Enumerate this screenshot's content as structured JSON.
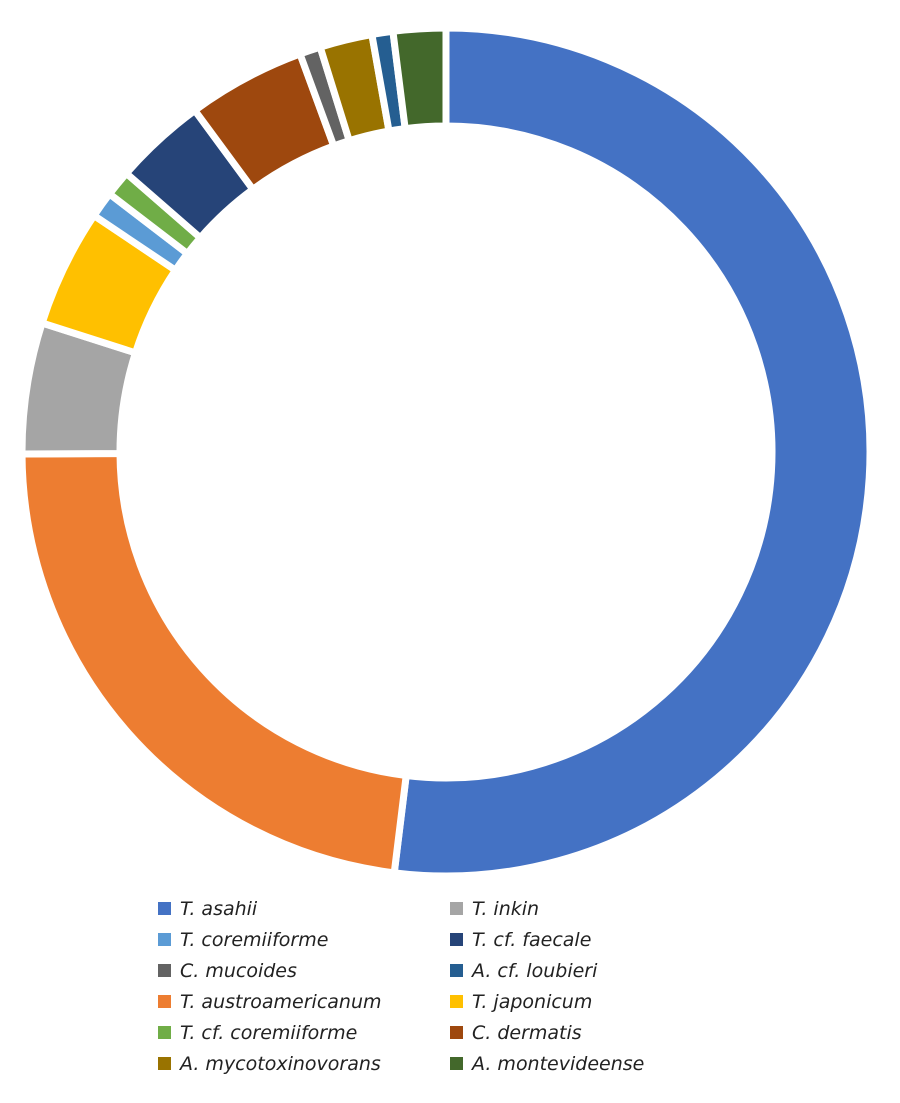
{
  "chart_data": {
    "type": "pie",
    "variant": "donut",
    "title": "",
    "unit": "approximate percent",
    "slices": [
      {
        "label": "T. asahii",
        "value": 52,
        "color": "#4472C4"
      },
      {
        "label": "T. austroamericanum",
        "value": 23,
        "color": "#ED7D31"
      },
      {
        "label": "T. inkin",
        "value": 5,
        "color": "#A5A5A5"
      },
      {
        "label": "T. japonicum",
        "value": 4.5,
        "color": "#FFC000"
      },
      {
        "label": "T. coremiiforme",
        "value": 1,
        "color": "#5B9BD5"
      },
      {
        "label": "T. cf. coremiiforme",
        "value": 1,
        "color": "#70AD47"
      },
      {
        "label": "T. cf. faecale",
        "value": 3.5,
        "color": "#264478"
      },
      {
        "label": "C. dermatis",
        "value": 4.5,
        "color": "#9E480E"
      },
      {
        "label": "C. mucoides",
        "value": 0.8,
        "color": "#636363"
      },
      {
        "label": "A. mycotoxinovorans",
        "value": 2,
        "color": "#997300"
      },
      {
        "label": "A. cf. loubieri",
        "value": 0.8,
        "color": "#255E91"
      },
      {
        "label": "A. montevideense",
        "value": 2,
        "color": "#43682B"
      }
    ],
    "legend_order": [
      0,
      2,
      4,
      6,
      8,
      10,
      1,
      3,
      5,
      7,
      9,
      11
    ],
    "legend_placement": "bottom"
  }
}
